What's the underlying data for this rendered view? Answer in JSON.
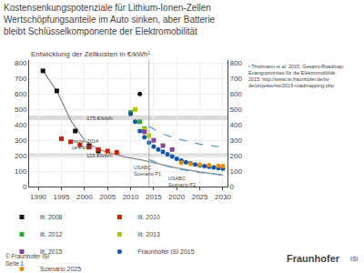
{
  "chart_data": {
    "type": "scatter",
    "title": "Kostensenkungspotenziale für Lithium-Ionen-Zellen\nWertschöpfungsanteile im Auto sinken, aber Batterie\nbleibt Schlüsselkomponente der Elektromobilität",
    "subtitle": "Entwicklung der Zellkosten in €/kWh¹",
    "series": [
      {
        "type": "line",
        "color": "#888888",
        "line_style": "solid",
        "x": [
          1991,
          1994,
          1997,
          2000,
          2003,
          2006,
          2009,
          2012,
          2015,
          2020,
          2025,
          2030
        ],
        "values": [
          750,
          620,
          430,
          300,
          240,
          215,
          190,
          175,
          155,
          120,
          95,
          75
        ]
      },
      {
        "type": "line",
        "color": "#5599cc",
        "line_style": "dashed",
        "x": [
          2014,
          2017,
          2020,
          2025,
          2030
        ],
        "values": [
          390,
          340,
          310,
          275,
          255
        ]
      },
      {
        "type": "line",
        "color": "#5599cc",
        "line_style": "dashed",
        "x": [
          2014,
          2017,
          2020,
          2025,
          2030
        ],
        "values": [
          175,
          140,
          115,
          90,
          75
        ]
      },
      {
        "type": "scatter",
        "name": "lit. 2008",
        "color": "#111111",
        "marker": "square",
        "x": [
          1991,
          1994,
          1998,
          2001,
          2003
        ],
        "values": [
          750,
          620,
          360,
          265,
          230
        ]
      },
      {
        "type": "scatter",
        "name": "lit. 2010",
        "color": "#cc2200",
        "marker": "square",
        "x": [
          1995,
          1997,
          1999,
          2001,
          2003,
          2005,
          2007
        ],
        "values": [
          310,
          290,
          270,
          255,
          240,
          230,
          222
        ]
      },
      {
        "type": "scatter",
        "name": "lit. 2012",
        "color": "#22aa33",
        "marker": "square",
        "x": [
          2010,
          2012,
          2013
        ],
        "values": [
          480,
          420,
          375
        ]
      },
      {
        "type": "scatter",
        "name": "lit. 2013",
        "color": "#aacc00",
        "marker": "square",
        "x": [
          2011,
          2013,
          2014
        ],
        "values": [
          500,
          370,
          330
        ]
      },
      {
        "type": "scatter",
        "name": "lit. 2015",
        "color": "#884499",
        "marker": "square",
        "x": [
          2013,
          2015,
          2017,
          2019
        ],
        "values": [
          355,
          300,
          265,
          240
        ]
      },
      {
        "type": "scatter",
        "name": "Fraunhofer ISI 2015",
        "color": "#1155aa",
        "marker": "circle",
        "x": [
          2010,
          2011,
          2012,
          2013,
          2014,
          2015,
          2016,
          2017,
          2018,
          2019,
          2020,
          2021,
          2022,
          2023,
          2024,
          2025,
          2026,
          2027,
          2028,
          2029,
          2030
        ],
        "values": [
          470,
          420,
          360,
          320,
          285,
          260,
          240,
          225,
          210,
          195,
          180,
          168,
          158,
          150,
          143,
          137,
          132,
          128,
          124,
          120,
          117
        ]
      },
      {
        "type": "scatter",
        "name": "Scenario 2025",
        "color": "#ee8800",
        "marker": "circle",
        "x": [
          2021,
          2023,
          2025,
          2027,
          2029,
          2030
        ],
        "values": [
          155,
          148,
          142,
          138,
          134,
          132
        ]
      },
      {
        "type": "scatter",
        "color": "#111111",
        "marker": "circle",
        "x": [
          2012
        ],
        "values": [
          600
        ]
      }
    ],
    "bands": [
      {
        "y0": 430,
        "y1": 460,
        "label": "175 €/kWh",
        "label_x": 2000,
        "color": "#bbbbbb"
      },
      {
        "y0": 190,
        "y1": 215,
        "label": "115 €/kWh",
        "label_x": 2000,
        "color": "#bbbbbb"
      }
    ],
    "vlines": [
      {
        "x": 2014,
        "color": "#aaaaaa"
      }
    ],
    "annotations": [
      {
        "text": "heute: 2014\nca €/kWh",
        "x": 1997,
        "y": 320
      },
      {
        "text": "USABC\nScenario P1",
        "x": 2010.5,
        "y": 148
      },
      {
        "text": "USABC\nScenario P2",
        "x": 2018,
        "y": 75
      }
    ],
    "footnotes": [
      "¹ Thielmann et al. 2015, Gesamt-Roadmap",
      "Evangopriorities für die Elektromobilität",
      "2015. http://www.isi.fraunhofer.de/isi-",
      "de/projekte/iss/2015-roadmapping.php"
    ],
    "credits": [
      "© Fraunhofer ISI",
      "Seite 1"
    ],
    "logo": [
      "Fraunhofer",
      "ISI"
    ],
    "xlim": [
      1988,
      2031
    ],
    "xticks": [
      1990,
      1995,
      2000,
      2005,
      2010,
      2015,
      2020,
      2025,
      2030
    ],
    "ylim": [
      0,
      820
    ],
    "yticks": [
      0,
      100,
      200,
      300,
      400,
      500,
      600,
      700,
      800
    ],
    "y2lim": [
      0,
      820
    ],
    "y2ticks": [
      0,
      100,
      200,
      300,
      400,
      500,
      600,
      700,
      800
    ],
    "grid": true,
    "legend": "bottom"
  }
}
